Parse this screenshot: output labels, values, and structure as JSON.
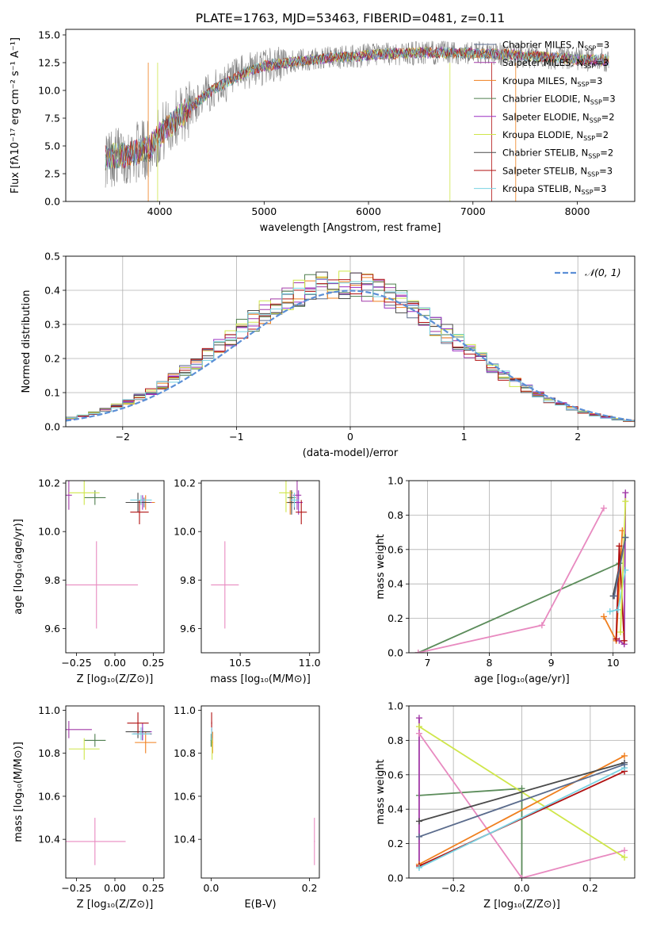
{
  "colors": [
    "#1f77b4",
    "#9b30c0",
    "#ff7f0e",
    "#2c6b2f",
    "#9932cc",
    "#c8e04a",
    "#444444",
    "#b00000",
    "#7fd6e0",
    "#e377c2",
    "#5b8c5a",
    "#d45d00"
  ],
  "series_style": [
    {
      "name": "Chabrier MILES",
      "color": "#5a6b8c"
    },
    {
      "name": "Salpeter MILES",
      "color": "#a23aa8"
    },
    {
      "name": "Kroupa MILES",
      "color": "#f07f1e"
    },
    {
      "name": "Chabrier ELODIE",
      "color": "#4f7f4f"
    },
    {
      "name": "Salpeter ELODIE",
      "color": "#9a2fc2"
    },
    {
      "name": "Kroupa ELODIE",
      "color": "#cfe64a"
    },
    {
      "name": "Chabrier STELIB",
      "color": "#4a4a4a"
    },
    {
      "name": "Salpeter STELIB",
      "color": "#b01010"
    },
    {
      "name": "Kroupa STELIB",
      "color": "#79d3e3"
    }
  ],
  "chart_data": [
    {
      "type": "line",
      "title": "PLATE=1763, MJD=53463, FIBERID=0481, z=0.11",
      "xlabel": "wavelength [Angstrom, rest frame]",
      "ylabel": "Flux [fλ10⁻¹⁷ erg cm⁻² s⁻¹ A⁻¹]",
      "xlim": [
        3100,
        8550
      ],
      "ylim": [
        0,
        15.5
      ],
      "xticks": [
        4000,
        5000,
        6000,
        7000,
        8000
      ],
      "yticks": [
        0.0,
        2.5,
        5.0,
        7.5,
        10.0,
        12.5,
        15.0
      ],
      "ytick_labels": [
        "0.0",
        "2.5",
        "5.0",
        "7.5",
        "10.0",
        "12.5",
        "15.0"
      ],
      "legend_position": "right",
      "legend": [
        {
          "base": "Chabrier MILES, N",
          "sub": "SSP",
          "tail": "=3"
        },
        {
          "base": "Salpeter MILES, N",
          "sub": "SSP",
          "tail": "=3"
        },
        {
          "base": "Kroupa MILES, N",
          "sub": "SSP",
          "tail": "=3"
        },
        {
          "base": "Chabrier ELODIE, N",
          "sub": "SSP",
          "tail": "=3"
        },
        {
          "base": "Salpeter ELODIE, N",
          "sub": "SSP",
          "tail": "=2"
        },
        {
          "base": "Kroupa ELODIE, N",
          "sub": "SSP",
          "tail": "=2"
        },
        {
          "base": "Chabrier STELIB, N",
          "sub": "SSP",
          "tail": "=2"
        },
        {
          "base": "Salpeter STELIB, N",
          "sub": "SSP",
          "tail": "=3"
        },
        {
          "base": "Kroupa STELIB, N",
          "sub": "SSP",
          "tail": "=3"
        }
      ],
      "continuum_x": [
        3500,
        3700,
        3900,
        4000,
        4200,
        4500,
        4800,
        5000,
        5300,
        5600,
        5900,
        6200,
        6500,
        6800,
        7100,
        7400,
        7700,
        8000,
        8300
      ],
      "continuum_y": [
        4.0,
        4.2,
        4.8,
        6.0,
        7.8,
        10.0,
        11.5,
        12.2,
        12.6,
        12.9,
        13.1,
        13.3,
        13.4,
        13.4,
        13.3,
        13.2,
        13.0,
        12.8,
        12.7
      ],
      "data_range": [
        3480,
        8300
      ]
    },
    {
      "type": "bar",
      "xlabel": "(data-model)/error",
      "ylabel": "Normed distribution",
      "xlim": [
        -2.5,
        2.5
      ],
      "ylim": [
        0,
        0.5
      ],
      "xticks": [
        -2,
        -1,
        0,
        1,
        2
      ],
      "xtick_labels": [
        "−2",
        "−1",
        "0",
        "1",
        "2"
      ],
      "yticks": [
        0.0,
        0.1,
        0.2,
        0.3,
        0.4,
        0.5
      ],
      "ytick_labels": [
        "0.0",
        "0.1",
        "0.2",
        "0.3",
        "0.4",
        "0.5"
      ],
      "grid": true,
      "bin_width": 0.1,
      "bin_start": -2.5,
      "gaussian_label": "𝒩(0, 1)",
      "legend_position": "top-right"
    },
    {
      "type": "scatter",
      "xlabel": "Z [log₁₀(Z/Z⊙)]",
      "ylabel": "age  [log₁₀(age/yr)]",
      "xlim": [
        -0.32,
        0.32
      ],
      "ylim": [
        9.5,
        10.21
      ],
      "xticks": [
        -0.25,
        0.0,
        0.25
      ],
      "xtick_labels": [
        "−0.25",
        "0.00",
        "0.25"
      ],
      "yticks": [
        9.6,
        9.8,
        10.0,
        10.2
      ],
      "ytick_labels": [
        "9.6",
        "9.8",
        "10.0",
        "10.2"
      ],
      "points": [
        {
          "s": 0,
          "x": 0.19,
          "y": 10.12,
          "xe": 0.07,
          "ye": 0.02
        },
        {
          "s": 1,
          "x": -0.3,
          "y": 10.15,
          "xe": 0.02,
          "ye": 0.06
        },
        {
          "s": 2,
          "x": 0.2,
          "y": 10.12,
          "xe": 0.06,
          "ye": 0.03
        },
        {
          "s": 3,
          "x": -0.13,
          "y": 10.14,
          "xe": 0.07,
          "ye": 0.03
        },
        {
          "s": 4,
          "x": 0.18,
          "y": 10.12,
          "xe": 0.06,
          "ye": 0.03
        },
        {
          "s": 5,
          "x": -0.2,
          "y": 10.16,
          "xe": 0.1,
          "ye": 0.05
        },
        {
          "s": 6,
          "x": 0.15,
          "y": 10.12,
          "xe": 0.08,
          "ye": 0.04
        },
        {
          "s": 7,
          "x": 0.16,
          "y": 10.08,
          "xe": 0.06,
          "ye": 0.05
        },
        {
          "s": 8,
          "x": 0.17,
          "y": 10.13,
          "xe": 0.07,
          "ye": 0.02
        },
        {
          "s": 9,
          "x": -0.12,
          "y": 9.78,
          "xe": 0.27,
          "ye": 0.18
        }
      ]
    },
    {
      "type": "scatter",
      "xlabel": "mass [log₁₀(M/M⊙)]",
      "xlim": [
        10.22,
        11.07
      ],
      "ylim": [
        9.5,
        10.21
      ],
      "xticks": [
        10.5,
        11.0
      ],
      "xtick_labels": [
        "10.5",
        "11.0"
      ],
      "yticks": [
        9.6,
        9.8,
        10.0,
        10.2
      ],
      "ytick_labels": [
        "9.6",
        "9.8",
        "10.0",
        "10.2"
      ],
      "points": [
        {
          "s": 0,
          "x": 10.89,
          "y": 10.12,
          "xe": 0.03,
          "ye": 0.03
        },
        {
          "s": 1,
          "x": 10.91,
          "y": 10.15,
          "xe": 0.03,
          "ye": 0.06
        },
        {
          "s": 2,
          "x": 10.86,
          "y": 10.12,
          "xe": 0.03,
          "ye": 0.05
        },
        {
          "s": 3,
          "x": 10.87,
          "y": 10.14,
          "xe": 0.03,
          "ye": 0.03
        },
        {
          "s": 4,
          "x": 10.92,
          "y": 10.12,
          "xe": 0.03,
          "ye": 0.05
        },
        {
          "s": 5,
          "x": 10.83,
          "y": 10.16,
          "xe": 0.05,
          "ye": 0.08
        },
        {
          "s": 6,
          "x": 10.87,
          "y": 10.12,
          "xe": 0.03,
          "ye": 0.05
        },
        {
          "s": 7,
          "x": 10.94,
          "y": 10.08,
          "xe": 0.04,
          "ye": 0.05
        },
        {
          "s": 8,
          "x": 10.89,
          "y": 10.13,
          "xe": 0.03,
          "ye": 0.03
        },
        {
          "s": 9,
          "x": 10.39,
          "y": 9.78,
          "xe": 0.1,
          "ye": 0.18
        }
      ]
    },
    {
      "type": "line",
      "xlabel": "age  [log₁₀(age/yr)]",
      "ylabel": "mass weight",
      "xlim": [
        6.7,
        10.35
      ],
      "ylim": [
        0,
        1.0
      ],
      "xticks": [
        7,
        8,
        9,
        10
      ],
      "xtick_labels": [
        "7",
        "8",
        "9",
        "10"
      ],
      "yticks": [
        0.0,
        0.2,
        0.4,
        0.6,
        0.8,
        1.0
      ],
      "ytick_labels": [
        "0.0",
        "0.2",
        "0.4",
        "0.6",
        "0.8",
        "1.0"
      ],
      "grid": true,
      "series": [
        {
          "s": 3,
          "x": [
            6.85,
            10.1
          ],
          "y": [
            0.0,
            0.52
          ]
        },
        {
          "s": 9,
          "x": [
            6.85,
            8.85,
            9.85
          ],
          "y": [
            0.0,
            0.16,
            0.84
          ]
        },
        {
          "s": 2,
          "x": [
            9.85,
            10.05,
            10.15
          ],
          "y": [
            0.21,
            0.07,
            0.71
          ]
        },
        {
          "s": 1,
          "x": [
            10.1,
            10.18,
            10.2
          ],
          "y": [
            0.07,
            0.05,
            0.93
          ]
        },
        {
          "s": 6,
          "x": [
            10.0,
            10.2
          ],
          "y": [
            0.33,
            0.67
          ]
        },
        {
          "s": 7,
          "x": [
            10.05,
            10.1,
            10.18
          ],
          "y": [
            0.08,
            0.62,
            0.07
          ]
        },
        {
          "s": 8,
          "x": [
            9.95,
            10.08,
            10.2
          ],
          "y": [
            0.24,
            0.25,
            0.48
          ]
        },
        {
          "s": 5,
          "x": [
            10.12,
            10.2
          ],
          "y": [
            0.12,
            0.88
          ]
        },
        {
          "s": 0,
          "x": [
            10.02,
            10.2
          ],
          "y": [
            0.33,
            0.67
          ]
        }
      ]
    },
    {
      "type": "scatter",
      "xlabel": "Z [log₁₀(Z/Z⊙)]",
      "ylabel": "mass [log₁₀(M/M⊙)]",
      "xlim": [
        -0.32,
        0.32
      ],
      "ylim": [
        10.22,
        11.02
      ],
      "xticks": [
        -0.25,
        0.0,
        0.25
      ],
      "xtick_labels": [
        "−0.25",
        "0.00",
        "0.25"
      ],
      "yticks": [
        10.4,
        10.6,
        10.8,
        11.0
      ],
      "ytick_labels": [
        "10.4",
        "10.6",
        "10.8",
        "11.0"
      ],
      "points": [
        {
          "s": 0,
          "x": 0.18,
          "y": 10.89,
          "xe": 0.06,
          "ye": 0.03
        },
        {
          "s": 1,
          "x": -0.3,
          "y": 10.91,
          "xe": 0.15,
          "ye": 0.04
        },
        {
          "s": 2,
          "x": 0.2,
          "y": 10.85,
          "xe": 0.07,
          "ye": 0.05
        },
        {
          "s": 3,
          "x": -0.13,
          "y": 10.86,
          "xe": 0.07,
          "ye": 0.03
        },
        {
          "s": 4,
          "x": 0.18,
          "y": 10.9,
          "xe": 0.06,
          "ye": 0.04
        },
        {
          "s": 5,
          "x": -0.2,
          "y": 10.82,
          "xe": 0.1,
          "ye": 0.05
        },
        {
          "s": 6,
          "x": 0.15,
          "y": 10.9,
          "xe": 0.08,
          "ye": 0.03
        },
        {
          "s": 7,
          "x": 0.15,
          "y": 10.94,
          "xe": 0.07,
          "ye": 0.05
        },
        {
          "s": 8,
          "x": 0.17,
          "y": 10.89,
          "xe": 0.06,
          "ye": 0.03
        },
        {
          "s": 9,
          "x": -0.13,
          "y": 10.39,
          "xe": 0.2,
          "ye": 0.11
        }
      ]
    },
    {
      "type": "scatter",
      "xlabel": "E(B-V)",
      "xlim": [
        -0.02,
        0.22
      ],
      "ylim": [
        10.22,
        11.02
      ],
      "xticks": [
        0.0,
        0.2
      ],
      "xtick_labels": [
        "0.0",
        "0.2"
      ],
      "yticks": [
        10.4,
        10.6,
        10.8,
        11.0
      ],
      "ytick_labels": [
        "10.4",
        "10.6",
        "10.8",
        "11.0"
      ],
      "points": [
        {
          "s": 0,
          "x": 0.001,
          "y": 10.89,
          "xe": 0.001,
          "ye": 0.03
        },
        {
          "s": 1,
          "x": 0.001,
          "y": 10.91,
          "xe": 0.001,
          "ye": 0.04
        },
        {
          "s": 2,
          "x": 0.003,
          "y": 10.85,
          "xe": 0.001,
          "ye": 0.05
        },
        {
          "s": 3,
          "x": 0.0,
          "y": 10.86,
          "xe": 0.001,
          "ye": 0.03
        },
        {
          "s": 5,
          "x": 0.002,
          "y": 10.82,
          "xe": 0.001,
          "ye": 0.05
        },
        {
          "s": 7,
          "x": 0.001,
          "y": 10.94,
          "xe": 0.001,
          "ye": 0.05
        },
        {
          "s": 8,
          "x": 0.001,
          "y": 10.89,
          "xe": 0.001,
          "ye": 0.03
        },
        {
          "s": 9,
          "x": 0.21,
          "y": 10.39,
          "xe": 0.001,
          "ye": 0.11
        }
      ]
    },
    {
      "type": "line",
      "xlabel": "Z [log₁₀(Z/Z⊙)]",
      "ylabel": "mass weight",
      "xlim": [
        -0.33,
        0.33
      ],
      "ylim": [
        0,
        1.0
      ],
      "xticks": [
        -0.2,
        0.0,
        0.2
      ],
      "xtick_labels": [
        "−0.2",
        "0.0",
        "0.2"
      ],
      "yticks": [
        0.0,
        0.2,
        0.4,
        0.6,
        0.8,
        1.0
      ],
      "ytick_labels": [
        "0.0",
        "0.2",
        "0.4",
        "0.6",
        "0.8",
        "1.0"
      ],
      "grid": true,
      "series": [
        {
          "s": 3,
          "x": [
            -0.3,
            0.0,
            0.0
          ],
          "y": [
            0.48,
            0.52,
            0.0
          ]
        },
        {
          "s": 1,
          "x": [
            -0.3,
            -0.3
          ],
          "y": [
            0.08,
            0.93
          ]
        },
        {
          "s": 9,
          "x": [
            -0.3,
            0.0,
            0.3
          ],
          "y": [
            0.84,
            0.0,
            0.16
          ]
        },
        {
          "s": 5,
          "x": [
            -0.3,
            0.3
          ],
          "y": [
            0.88,
            0.12
          ]
        },
        {
          "s": 2,
          "x": [
            -0.3,
            0.3
          ],
          "y": [
            0.08,
            0.71
          ]
        },
        {
          "s": 6,
          "x": [
            -0.3,
            0.3
          ],
          "y": [
            0.33,
            0.67
          ]
        },
        {
          "s": 7,
          "x": [
            -0.3,
            0.3
          ],
          "y": [
            0.07,
            0.62
          ]
        },
        {
          "s": 8,
          "x": [
            -0.3,
            0.3
          ],
          "y": [
            0.06,
            0.64
          ]
        },
        {
          "s": 0,
          "x": [
            -0.3,
            0.3
          ],
          "y": [
            0.24,
            0.66
          ]
        }
      ]
    }
  ]
}
